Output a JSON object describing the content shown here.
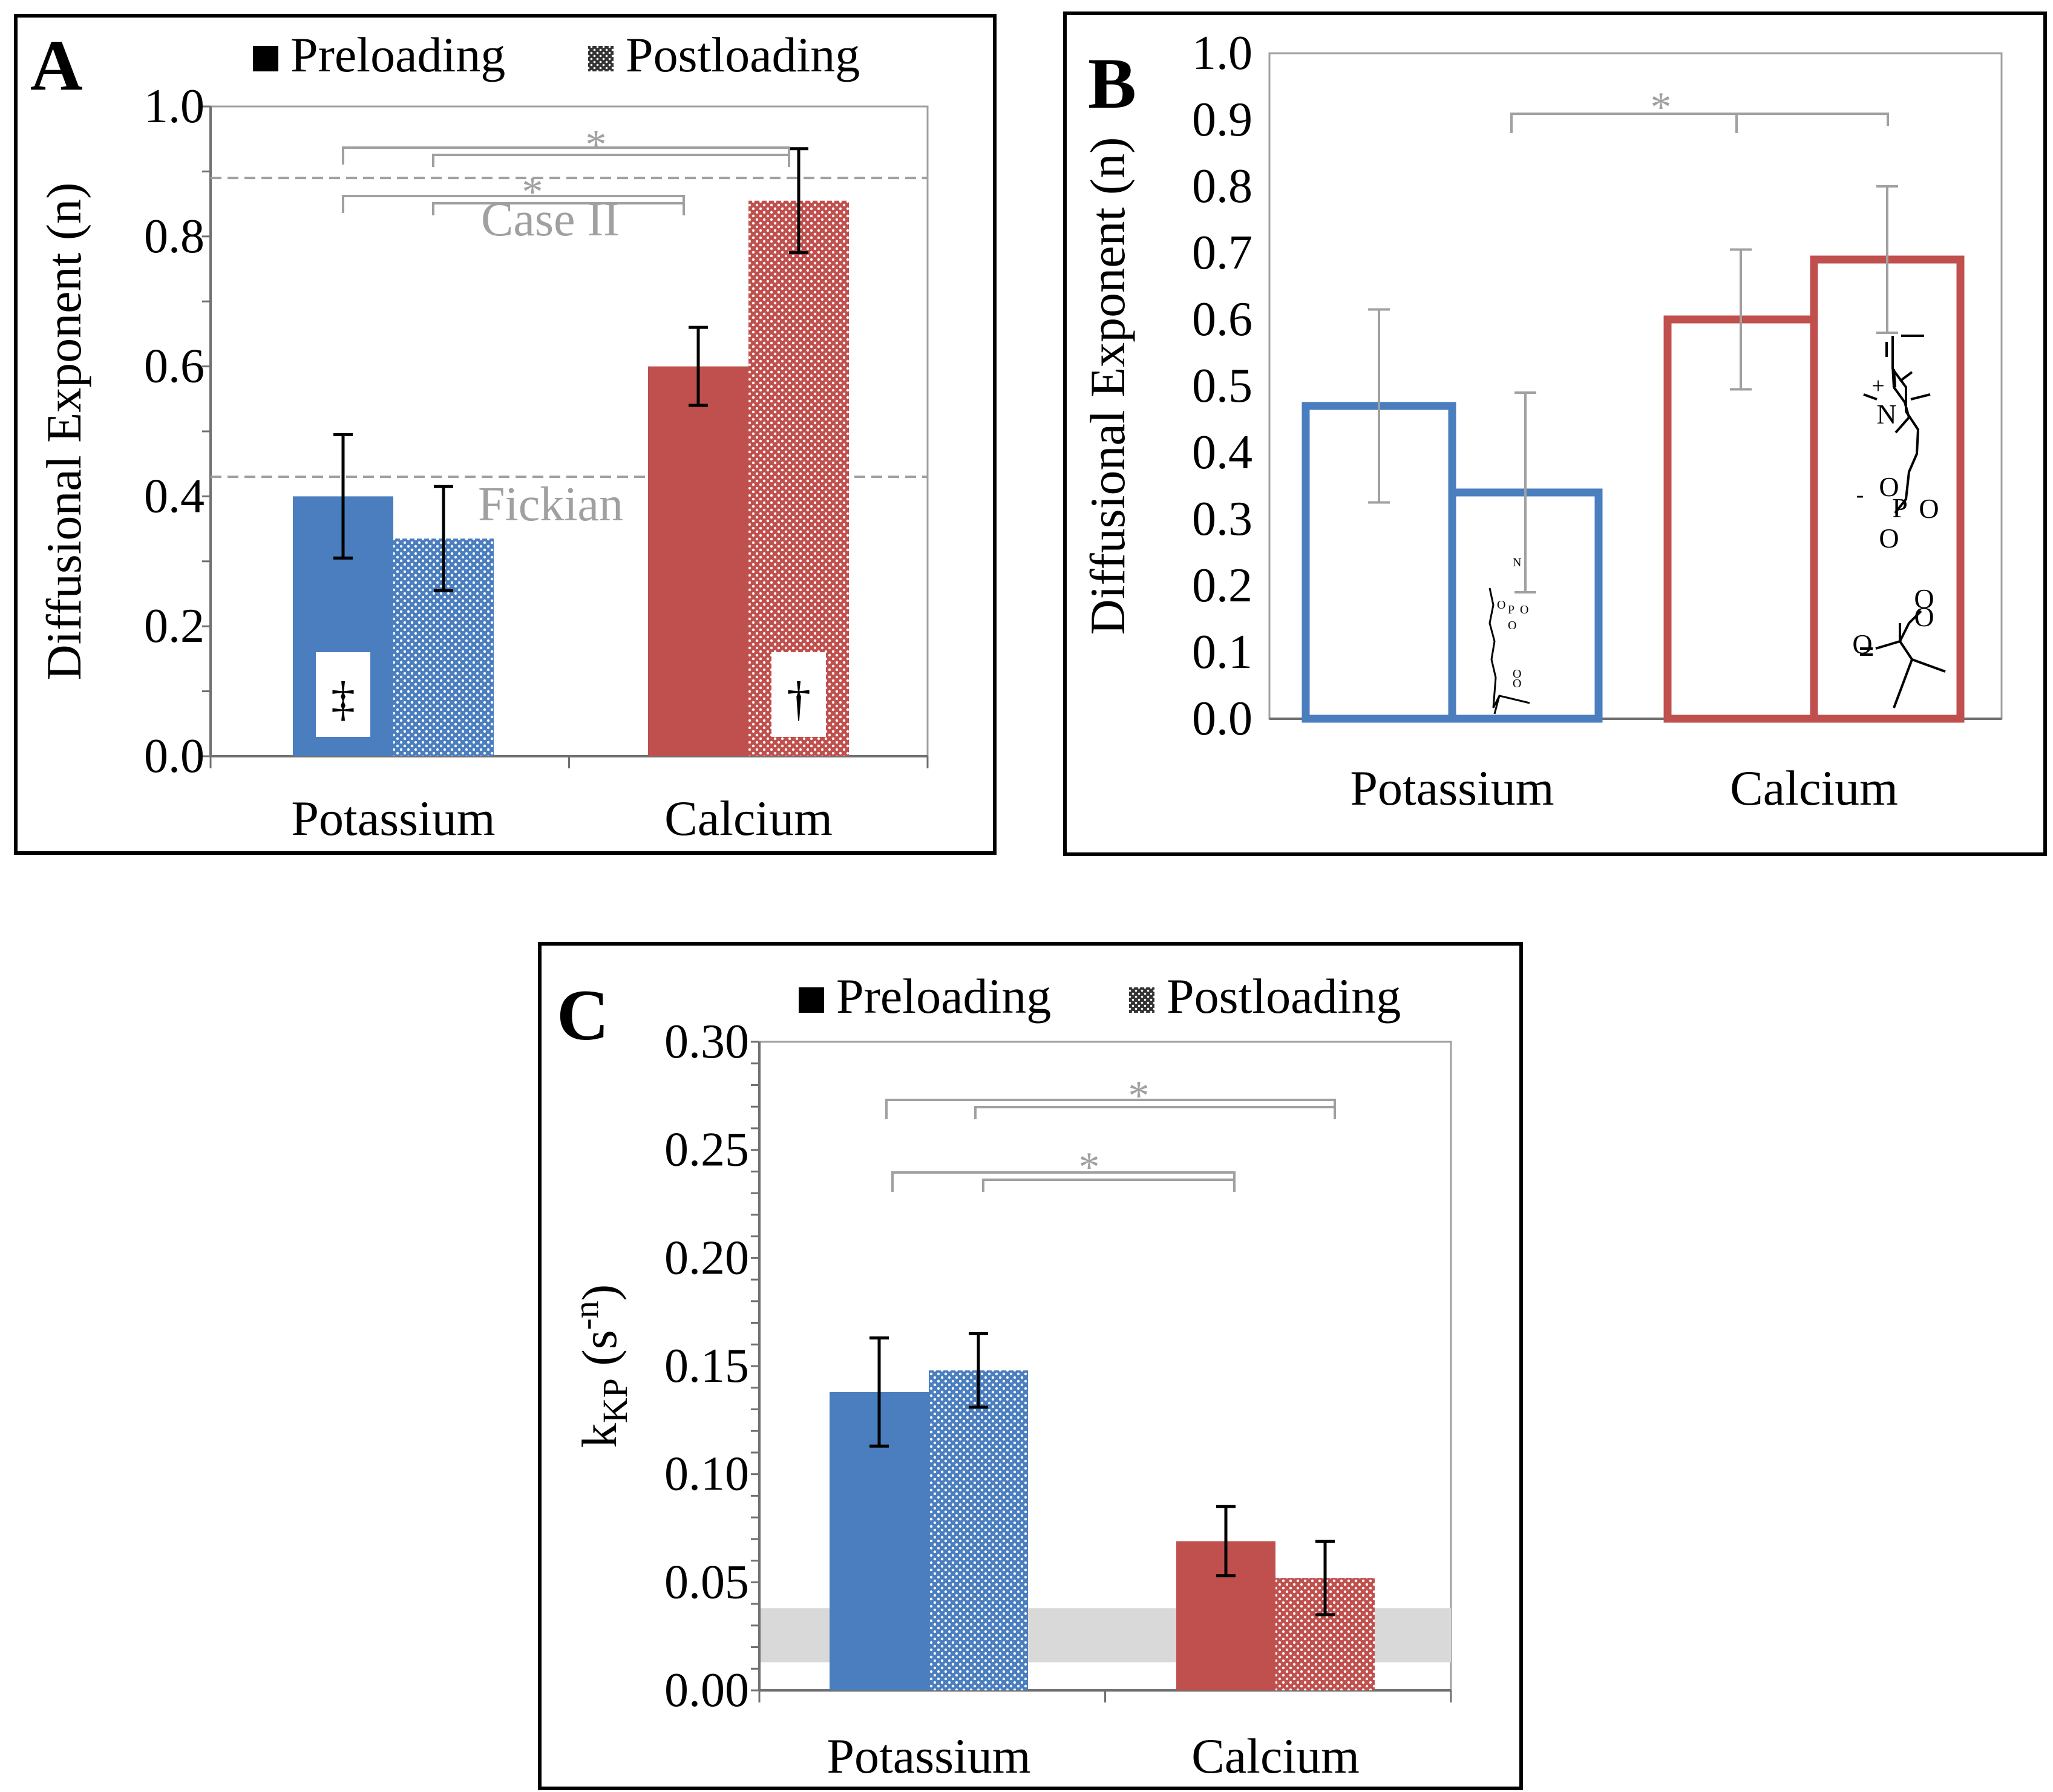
{
  "colors": {
    "potassium": "#4a7ebf",
    "calcium": "#c0504d",
    "potassium_light": "#a9c1e3",
    "calcium_light": "#e3a5a3",
    "bracket": "#a0a0a0",
    "frame": "#000000",
    "band": "#d9d9d9"
  },
  "legend": {
    "preloading": "Preloading",
    "postloading": "Postloading"
  },
  "chart_data": [
    {
      "panel": "A",
      "type": "bar",
      "ylabel": "Diffusional Exponent (n)",
      "ylim": [
        0,
        1.0
      ],
      "yticks": [
        "0.0",
        "0.2",
        "0.4",
        "0.6",
        "0.8",
        "1.0"
      ],
      "categories": [
        "Potassium",
        "Calcium"
      ],
      "series": [
        {
          "name": "Preloading",
          "values": [
            0.4,
            0.6
          ],
          "errors": [
            0.095,
            0.06
          ]
        },
        {
          "name": "Postloading",
          "values": [
            0.335,
            0.855
          ],
          "errors": [
            0.08,
            0.08
          ]
        }
      ],
      "reference_lines": [
        {
          "label": "Case II",
          "value": 0.89
        },
        {
          "label": "Fickian",
          "value": 0.43
        }
      ],
      "significance": [
        {
          "label": "*"
        },
        {
          "label": "*"
        }
      ],
      "bar_marks": [
        {
          "category": "Potassium",
          "symbol": "‡"
        },
        {
          "category": "Calcium",
          "symbol": "†"
        }
      ]
    },
    {
      "panel": "B",
      "type": "bar",
      "ylabel": "Diffusional Exponent (n)",
      "ylim": [
        0,
        1.0
      ],
      "yticks": [
        "0.0",
        "0.1",
        "0.2",
        "0.3",
        "0.4",
        "0.5",
        "0.6",
        "0.7",
        "0.8",
        "0.9",
        "1.0"
      ],
      "categories": [
        "Potassium",
        "Calcium"
      ],
      "series": [
        {
          "name": "Preloading",
          "values": [
            0.47,
            0.6
          ],
          "errors": [
            0.145,
            0.105
          ]
        },
        {
          "name": "Postloading",
          "values": [
            0.34,
            0.69
          ],
          "errors": [
            0.15,
            0.11
          ]
        }
      ],
      "significance": [
        {
          "label": "*"
        }
      ],
      "molecule": {
        "atoms": [
          "N",
          "+",
          "O",
          "-",
          "P",
          "O",
          "O",
          "O",
          "O",
          "O"
        ]
      }
    },
    {
      "panel": "C",
      "type": "bar",
      "ylabel": "kKP (s-n)",
      "ylabel_parts": {
        "main": "k",
        "sub": "KP",
        "open": " (s",
        "sup": "-n",
        "close": ")"
      },
      "ylim": [
        0,
        0.3
      ],
      "yticks": [
        "0.00",
        "0.05",
        "0.10",
        "0.15",
        "0.20",
        "0.25",
        "0.30"
      ],
      "categories": [
        "Potassium",
        "Calcium"
      ],
      "series": [
        {
          "name": "Preloading",
          "values": [
            0.138,
            0.069
          ],
          "errors": [
            0.025,
            0.016
          ]
        },
        {
          "name": "Postloading",
          "values": [
            0.148,
            0.052
          ],
          "errors": [
            0.017,
            0.017
          ]
        }
      ],
      "band": [
        0.013,
        0.038
      ],
      "significance": [
        {
          "label": "*"
        },
        {
          "label": "*"
        }
      ]
    }
  ]
}
